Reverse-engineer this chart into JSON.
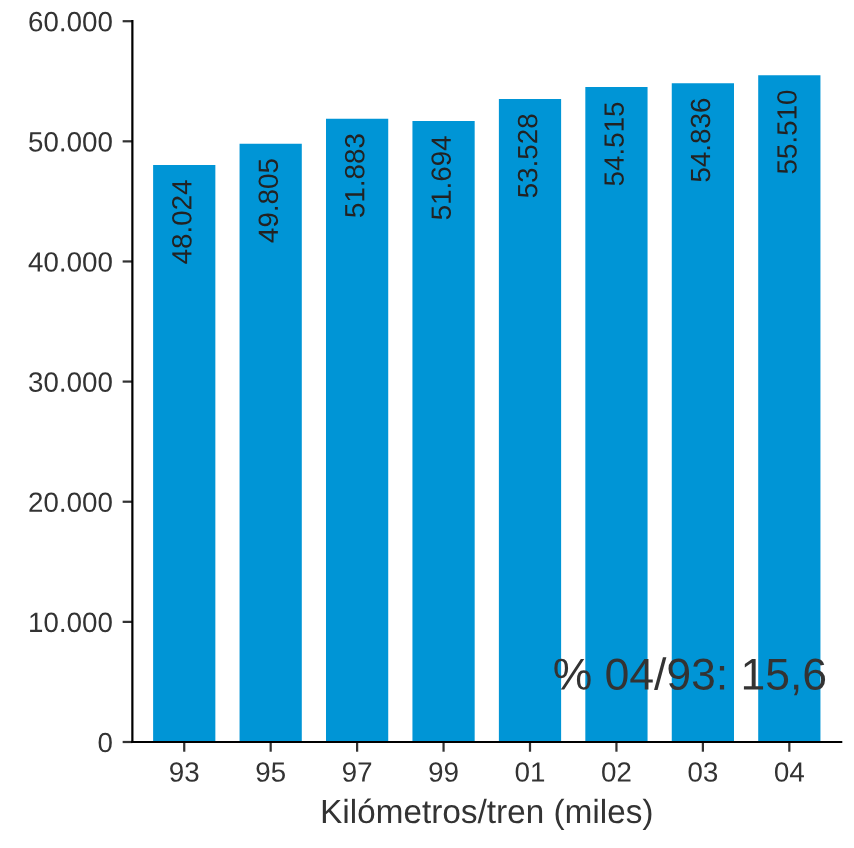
{
  "chart_data": {
    "type": "bar",
    "xlabel": "Kilómetros/tren (miles)",
    "categories": [
      "93",
      "95",
      "97",
      "99",
      "01",
      "02",
      "03",
      "04"
    ],
    "values": [
      48024,
      49805,
      51883,
      51694,
      53528,
      54515,
      54836,
      55510
    ],
    "value_labels": [
      "48.024",
      "49.805",
      "51.883",
      "51.694",
      "53.528",
      "54.515",
      "54.836",
      "55.510"
    ],
    "color": "#0095d6",
    "ylim": [
      0,
      60000
    ],
    "yticks": [
      {
        "value": 0,
        "label": "0"
      },
      {
        "value": 10000,
        "label": "10.000"
      },
      {
        "value": 20000,
        "label": "20.000"
      },
      {
        "value": 30000,
        "label": "30.000"
      },
      {
        "value": 40000,
        "label": "40.000"
      },
      {
        "value": 50000,
        "label": "50.000"
      },
      {
        "value": 60000,
        "label": "60.000"
      }
    ],
    "annotations": [
      "% 04/93: 15,6"
    ],
    "grid": false
  }
}
